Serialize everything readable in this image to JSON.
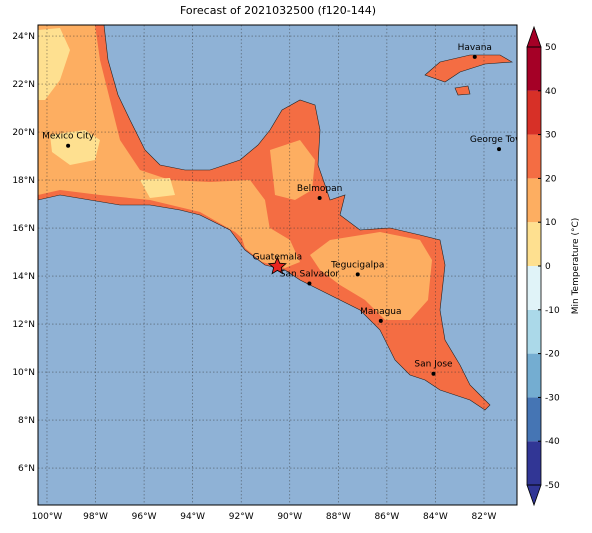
{
  "map": {
    "title": "Forecast of 2021032500 (f120-144)",
    "xlim": [
      -100.37,
      -80.64
    ],
    "ylim": [
      4.46,
      24.46
    ],
    "xticks": [
      {
        "value": -100,
        "label": "100°W"
      },
      {
        "value": -98,
        "label": "98°W"
      },
      {
        "value": -96,
        "label": "96°W"
      },
      {
        "value": -94,
        "label": "94°W"
      },
      {
        "value": -92,
        "label": "92°W"
      },
      {
        "value": -90,
        "label": "90°W"
      },
      {
        "value": -88,
        "label": "88°W"
      },
      {
        "value": -86,
        "label": "86°W"
      },
      {
        "value": -84,
        "label": "84°W"
      },
      {
        "value": -82,
        "label": "82°W"
      }
    ],
    "yticks": [
      {
        "value": 6,
        "label": "6°N"
      },
      {
        "value": 8,
        "label": "8°N"
      },
      {
        "value": 10,
        "label": "10°N"
      },
      {
        "value": 12,
        "label": "12°N"
      },
      {
        "value": 14,
        "label": "14°N"
      },
      {
        "value": 16,
        "label": "16°N"
      },
      {
        "value": 18,
        "label": "18°N"
      },
      {
        "value": 20,
        "label": "20°N"
      },
      {
        "value": 22,
        "label": "22°N"
      },
      {
        "value": 24,
        "label": "24°N"
      }
    ],
    "cities": [
      {
        "name": "Mexico City",
        "lon": -99.13,
        "lat": 19.43
      },
      {
        "name": "Belmopan",
        "lon": -88.77,
        "lat": 17.25
      },
      {
        "name": "Guatemala",
        "lon": -90.51,
        "lat": 14.4
      },
      {
        "name": "San Salvador",
        "lon": -89.19,
        "lat": 13.69
      },
      {
        "name": "Tegucigalpa",
        "lon": -87.2,
        "lat": 14.07
      },
      {
        "name": "Managua",
        "lon": -86.25,
        "lat": 12.13
      },
      {
        "name": "San Jose",
        "lon": -84.08,
        "lat": 9.93
      },
      {
        "name": "Havana",
        "lon": -82.38,
        "lat": 23.13
      },
      {
        "name": "George Town",
        "lon": -81.38,
        "lat": 19.29
      }
    ],
    "colorbar": {
      "label": "Min Temperature (°C)",
      "lim": [
        -50,
        50
      ],
      "ticks": [
        -50,
        -40,
        -30,
        -20,
        -10,
        0,
        10,
        20,
        30,
        40,
        50
      ],
      "colors": [
        "#313695",
        "#4575b4",
        "#74add1",
        "#abd9e9",
        "#e0f3f8",
        "#fee090",
        "#fdae61",
        "#f46d43",
        "#d73027",
        "#a50026"
      ]
    }
  }
}
